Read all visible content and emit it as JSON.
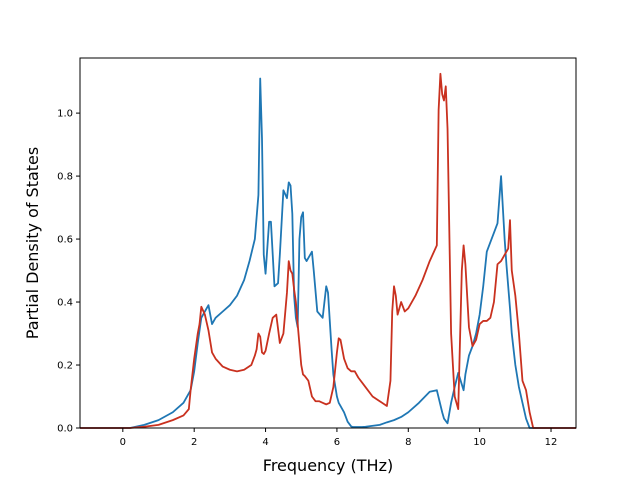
{
  "chart_data": {
    "type": "line",
    "title": "",
    "xlabel": "Frequency (THz)",
    "ylabel": "Partial Density of States",
    "xlim": [
      -1.2,
      12.7
    ],
    "ylim": [
      0,
      1.175
    ],
    "xticks": [
      0,
      2,
      4,
      6,
      8,
      10,
      12
    ],
    "yticks": [
      0.0,
      0.2,
      0.4,
      0.6,
      0.8,
      1.0
    ],
    "ytick_labels": [
      "0.0",
      "0.2",
      "0.4",
      "0.6",
      "0.8",
      "1.0"
    ],
    "grid": false,
    "legend": "none",
    "series": [
      {
        "color": "#1f77b4",
        "x": [
          -1.2,
          0.2,
          0.6,
          1.0,
          1.4,
          1.7,
          1.9,
          2.0,
          2.1,
          2.2,
          2.3,
          2.4,
          2.5,
          2.6,
          2.8,
          3.0,
          3.2,
          3.4,
          3.55,
          3.7,
          3.8,
          3.85,
          3.9,
          3.95,
          4.0,
          4.1,
          4.15,
          4.25,
          4.35,
          4.4,
          4.5,
          4.6,
          4.65,
          4.7,
          4.75,
          4.8,
          4.85,
          4.9,
          4.95,
          5.0,
          5.05,
          5.1,
          5.15,
          5.25,
          5.3,
          5.35,
          5.45,
          5.6,
          5.7,
          5.75,
          5.85,
          5.9,
          6.0,
          6.05,
          6.1,
          6.2,
          6.3,
          6.4,
          6.45,
          6.6,
          6.7,
          6.8,
          7.2,
          7.4,
          7.6,
          7.8,
          8.0,
          8.3,
          8.6,
          8.8,
          8.95,
          9.0,
          9.1,
          9.2,
          9.3,
          9.4,
          9.55,
          9.6,
          9.7,
          9.8,
          9.9,
          10.0,
          10.1,
          10.2,
          10.3,
          10.4,
          10.5,
          10.6,
          10.7,
          10.75,
          10.8,
          10.85,
          10.9,
          11.0,
          11.1,
          11.2,
          11.3,
          11.4,
          11.5,
          12.7
        ],
        "values": [
          0.0,
          0.0,
          0.01,
          0.025,
          0.05,
          0.08,
          0.12,
          0.18,
          0.27,
          0.35,
          0.37,
          0.39,
          0.33,
          0.35,
          0.37,
          0.39,
          0.42,
          0.47,
          0.53,
          0.6,
          0.74,
          1.11,
          0.92,
          0.55,
          0.49,
          0.655,
          0.655,
          0.45,
          0.46,
          0.55,
          0.755,
          0.73,
          0.78,
          0.77,
          0.68,
          0.42,
          0.35,
          0.32,
          0.6,
          0.67,
          0.685,
          0.54,
          0.53,
          0.55,
          0.56,
          0.5,
          0.37,
          0.35,
          0.45,
          0.43,
          0.25,
          0.17,
          0.1,
          0.08,
          0.07,
          0.05,
          0.02,
          0.005,
          0.003,
          0.003,
          0.003,
          0.004,
          0.01,
          0.018,
          0.025,
          0.035,
          0.05,
          0.08,
          0.115,
          0.12,
          0.05,
          0.03,
          0.015,
          0.08,
          0.13,
          0.175,
          0.12,
          0.17,
          0.23,
          0.26,
          0.3,
          0.36,
          0.45,
          0.56,
          0.59,
          0.62,
          0.65,
          0.8,
          0.6,
          0.52,
          0.45,
          0.38,
          0.3,
          0.2,
          0.13,
          0.08,
          0.03,
          0.0,
          0.0,
          0.0
        ]
      },
      {
        "color": "#c9311f",
        "x": [
          -1.2,
          0.2,
          0.6,
          1.0,
          1.4,
          1.7,
          1.85,
          1.9,
          2.0,
          2.05,
          2.1,
          2.15,
          2.2,
          2.3,
          2.4,
          2.5,
          2.6,
          2.8,
          3.0,
          3.2,
          3.4,
          3.6,
          3.7,
          3.75,
          3.8,
          3.85,
          3.9,
          3.95,
          4.0,
          4.1,
          4.2,
          4.3,
          4.4,
          4.5,
          4.6,
          4.65,
          4.7,
          4.75,
          4.8,
          4.85,
          4.9,
          5.0,
          5.05,
          5.1,
          5.2,
          5.3,
          5.4,
          5.5,
          5.6,
          5.7,
          5.8,
          5.9,
          6.0,
          6.05,
          6.1,
          6.2,
          6.3,
          6.4,
          6.5,
          6.6,
          6.8,
          7.0,
          7.2,
          7.4,
          7.5,
          7.55,
          7.6,
          7.65,
          7.7,
          7.75,
          7.8,
          7.9,
          8.0,
          8.2,
          8.4,
          8.6,
          8.8,
          8.85,
          8.9,
          8.95,
          9.0,
          9.05,
          9.1,
          9.2,
          9.3,
          9.4,
          9.5,
          9.55,
          9.6,
          9.7,
          9.8,
          9.9,
          10.0,
          10.1,
          10.2,
          10.3,
          10.4,
          10.5,
          10.6,
          10.7,
          10.8,
          10.85,
          10.9,
          11.0,
          11.1,
          11.2,
          11.3,
          11.4,
          11.5,
          12.7
        ],
        "values": [
          0.0,
          0.0,
          0.004,
          0.01,
          0.025,
          0.04,
          0.06,
          0.12,
          0.22,
          0.26,
          0.3,
          0.33,
          0.385,
          0.36,
          0.31,
          0.24,
          0.22,
          0.195,
          0.185,
          0.18,
          0.185,
          0.2,
          0.23,
          0.25,
          0.3,
          0.29,
          0.24,
          0.235,
          0.245,
          0.3,
          0.35,
          0.36,
          0.27,
          0.3,
          0.43,
          0.53,
          0.5,
          0.49,
          0.44,
          0.4,
          0.33,
          0.2,
          0.17,
          0.165,
          0.15,
          0.1,
          0.085,
          0.085,
          0.08,
          0.075,
          0.08,
          0.13,
          0.24,
          0.285,
          0.28,
          0.22,
          0.19,
          0.18,
          0.18,
          0.16,
          0.13,
          0.1,
          0.085,
          0.07,
          0.15,
          0.37,
          0.45,
          0.42,
          0.36,
          0.38,
          0.4,
          0.37,
          0.38,
          0.42,
          0.47,
          0.53,
          0.58,
          1.01,
          1.125,
          1.06,
          1.04,
          1.085,
          0.95,
          0.3,
          0.1,
          0.06,
          0.5,
          0.58,
          0.52,
          0.32,
          0.26,
          0.28,
          0.33,
          0.34,
          0.34,
          0.35,
          0.4,
          0.52,
          0.53,
          0.55,
          0.57,
          0.66,
          0.5,
          0.42,
          0.3,
          0.15,
          0.12,
          0.05,
          0.0,
          0.0
        ]
      }
    ]
  }
}
